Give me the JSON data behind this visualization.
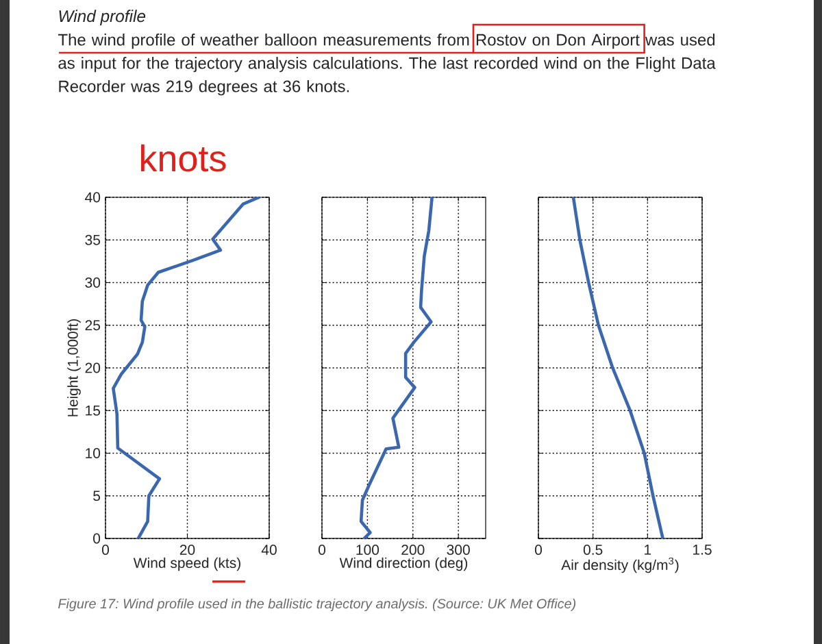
{
  "chart_data": [
    {
      "type": "line",
      "title": "Wind profile",
      "subtitle": "The wind profile of weather balloon measurements from Rostov on Don Airport was used as input for the trajectory analysis calculations. The last recorded wind on the Flight Data Recorder was 219 degrees at 36 knots.",
      "annotations": [
        "knots",
        "Figure 17: Wind profile used in the ballistic trajectory analysis. (Source: UK Met Office)"
      ],
      "xlabel": "Wind speed (kts)",
      "ylabel": "Height (1,000ft)",
      "color": "#3a67ad",
      "x": [
        8,
        10.3,
        10.6,
        13.2,
        3,
        2.8,
        1.9,
        3.9,
        7.8,
        9,
        9.6,
        8.7,
        9,
        10.3,
        12.9,
        21.3,
        28.1,
        26.2,
        33.6,
        37.5
      ],
      "values": [
        0,
        2,
        5,
        7,
        10.6,
        14.6,
        17.6,
        19.3,
        21.6,
        23,
        24.8,
        25.6,
        27.8,
        29.7,
        31.2,
        32.6,
        33.8,
        35.1,
        39.2,
        40
      ],
      "xlim": [
        0,
        40
      ],
      "xticks": [
        0,
        20,
        40
      ],
      "ylim": [
        0,
        40
      ],
      "yticks": [
        0,
        5,
        10,
        15,
        20,
        25,
        30,
        35,
        40
      ],
      "grid": true
    },
    {
      "type": "line",
      "xlabel": "Wind direction (deg)",
      "color": "#3a67ad",
      "x": [
        93,
        106,
        86,
        89,
        104,
        141,
        169,
        156,
        204,
        184,
        184,
        202,
        240,
        217,
        219,
        225,
        235,
        242
      ],
      "values": [
        0,
        0.7,
        2,
        4.5,
        6.3,
        10.5,
        10.7,
        14.1,
        17.7,
        18.9,
        21.7,
        23,
        25.4,
        27.1,
        29.1,
        33.1,
        36.1,
        40
      ],
      "xlim": [
        0,
        360
      ],
      "xticks": [
        0,
        100,
        200,
        300
      ],
      "ylim": [
        0,
        40
      ],
      "yticks": [
        0,
        5,
        10,
        15,
        20,
        25,
        30,
        35,
        40
      ],
      "grid": true,
      "tick_labels": "x"
    },
    {
      "type": "line",
      "xlabel": "Air density (kg/m$^{3}$)",
      "color": "#3a67ad",
      "x": [
        1.14,
        1.05,
        0.97,
        0.84,
        0.68,
        0.55,
        0.46,
        0.38,
        0.32
      ],
      "values": [
        0,
        5,
        10,
        15,
        20,
        25,
        30,
        35,
        40
      ],
      "xlim": [
        0,
        1.5
      ],
      "xticks": [
        0,
        0.5,
        1,
        1.5
      ],
      "ylim": [
        0,
        40
      ],
      "yticks": [
        0,
        5,
        10,
        15,
        20,
        25,
        30,
        35,
        40
      ],
      "grid": true,
      "tick_labels": "x"
    }
  ]
}
